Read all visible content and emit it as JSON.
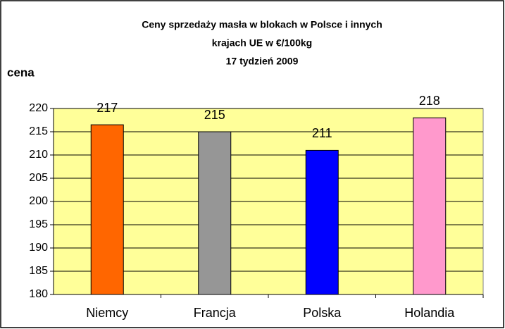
{
  "chart_data": {
    "type": "bar",
    "title": [
      "Ceny sprzedaży masła w blokach w Polsce i  innych",
      "krajach UE w €/100kg",
      "17 tydzień 2009"
    ],
    "y_label": "cena",
    "categories": [
      "Niemcy",
      "Francja",
      "Polska",
      "Holandia"
    ],
    "values": [
      216.5,
      215,
      211,
      218
    ],
    "value_labels": [
      "217",
      "215",
      "211",
      "218"
    ],
    "colors": [
      "#ff6600",
      "#969696",
      "#0000ff",
      "#ff99cc"
    ],
    "ylim": [
      180,
      220
    ],
    "yticks": [
      180,
      185,
      190,
      195,
      200,
      205,
      210,
      215,
      220
    ],
    "grid": true
  }
}
